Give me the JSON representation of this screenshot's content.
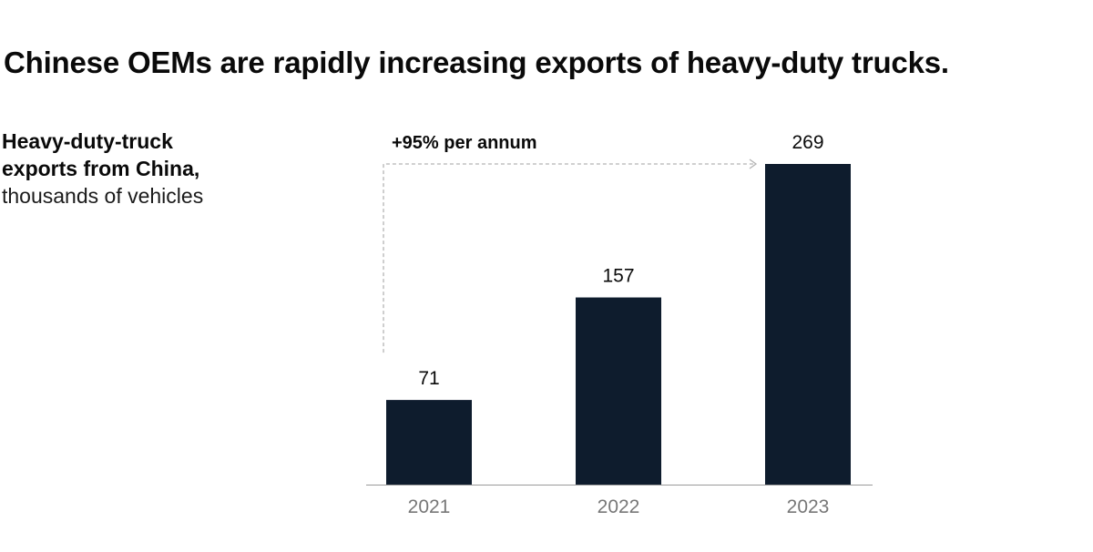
{
  "title": "Chinese OEMs are rapidly increasing exports of heavy-duty trucks.",
  "subtitle": {
    "bold": [
      "Heavy-duty-truck",
      "exports from China,"
    ],
    "light": "thousands of vehicles"
  },
  "annotation": "+95% per annum",
  "colors": {
    "bar": "#0e1c2d",
    "axis": "#9a9a9a",
    "tick_text": "#777777",
    "arrow": "#b3b3b3"
  },
  "chart_data": {
    "type": "bar",
    "categories": [
      "2021",
      "2022",
      "2023"
    ],
    "values": [
      71,
      157,
      269
    ],
    "data_labels": [
      "71",
      "157",
      "269"
    ],
    "ylim": [
      0,
      269
    ],
    "grid": false,
    "xlabel": "",
    "ylabel": ""
  }
}
